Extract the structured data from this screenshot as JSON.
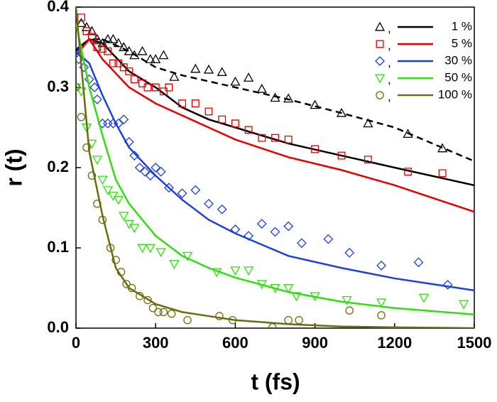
{
  "chart_data": {
    "type": "scatter",
    "x_label": "t (fs)",
    "y_label": "r (t)",
    "xlim": [
      0,
      1500
    ],
    "ylim": [
      0,
      0.4
    ],
    "xticks": [
      0,
      300,
      600,
      900,
      1200,
      1500
    ],
    "yticks": [
      {
        "value": 0,
        "label": "0.0"
      },
      0.1,
      0.2,
      0.3,
      0.4
    ],
    "legend": "upper right",
    "legend_separator": ",",
    "series": [
      {
        "name": "1 %",
        "color": "#000000",
        "marker": "triangle",
        "x": [
          20,
          40,
          60,
          80,
          100,
          120,
          140,
          160,
          180,
          200,
          220,
          250,
          280,
          300,
          330,
          370,
          450,
          500,
          550,
          600,
          650,
          700,
          750,
          800,
          900,
          1000,
          1100,
          1250,
          1380
        ],
        "values": [
          0.38,
          0.375,
          0.37,
          0.36,
          0.355,
          0.36,
          0.36,
          0.355,
          0.35,
          0.345,
          0.34,
          0.345,
          0.335,
          0.335,
          0.34,
          0.313,
          0.323,
          0.322,
          0.319,
          0.307,
          0.312,
          0.298,
          0.287,
          0.286,
          0.278,
          0.268,
          0.255,
          0.242,
          0.224
        ],
        "line_x": [
          0,
          50,
          100,
          200,
          300,
          400,
          500,
          600,
          800,
          1000,
          1200,
          1500
        ],
        "line_values": [
          0.347,
          0.36,
          0.355,
          0.32,
          0.3,
          0.275,
          0.26,
          0.25,
          0.23,
          0.215,
          0.2,
          0.178
        ]
      },
      {
        "name": "5 %",
        "color": "#e00000",
        "marker": "square",
        "x": [
          20,
          40,
          60,
          80,
          100,
          120,
          140,
          160,
          180,
          200,
          220,
          250,
          270,
          300,
          330,
          350,
          400,
          450,
          500,
          550,
          600,
          650,
          700,
          750,
          800,
          900,
          1000,
          1100,
          1250,
          1380
        ],
        "values": [
          0.387,
          0.37,
          0.363,
          0.35,
          0.348,
          0.345,
          0.33,
          0.33,
          0.325,
          0.32,
          0.31,
          0.305,
          0.3,
          0.3,
          0.295,
          0.3,
          0.28,
          0.28,
          0.27,
          0.26,
          0.255,
          0.247,
          0.237,
          0.237,
          0.235,
          0.223,
          0.215,
          0.21,
          0.195,
          0.193
        ],
        "line_x": [
          0,
          50,
          100,
          200,
          300,
          400,
          500,
          600,
          800,
          1000,
          1200,
          1500
        ],
        "line_values": [
          0.34,
          0.36,
          0.335,
          0.3,
          0.28,
          0.265,
          0.25,
          0.235,
          0.213,
          0.197,
          0.178,
          0.145
        ]
      },
      {
        "name": "30 %",
        "color": "#1f3fdd",
        "marker": "diamond",
        "x": [
          0,
          10,
          30,
          50,
          70,
          80,
          100,
          120,
          140,
          160,
          180,
          200,
          220,
          240,
          260,
          280,
          300,
          320,
          350,
          400,
          450,
          500,
          550,
          600,
          650,
          700,
          750,
          800,
          850,
          950,
          1030,
          1150,
          1290,
          1400
        ],
        "values": [
          0.345,
          0.335,
          0.325,
          0.31,
          0.3,
          0.285,
          0.255,
          0.255,
          0.255,
          0.255,
          0.26,
          0.232,
          0.215,
          0.2,
          0.195,
          0.19,
          0.2,
          0.195,
          0.175,
          0.168,
          0.172,
          0.155,
          0.148,
          0.123,
          0.115,
          0.13,
          0.12,
          0.127,
          0.106,
          0.111,
          0.094,
          0.078,
          0.082,
          0.054
        ],
        "line_x": [
          0,
          50,
          100,
          150,
          200,
          300,
          400,
          500,
          600,
          800,
          1000,
          1200,
          1500
        ],
        "line_values": [
          0.345,
          0.33,
          0.29,
          0.255,
          0.225,
          0.19,
          0.16,
          0.135,
          0.118,
          0.09,
          0.075,
          0.062,
          0.047
        ]
      },
      {
        "name": "50 %",
        "color": "#33dd11",
        "marker": "triangle-down",
        "x": [
          0,
          20,
          40,
          60,
          80,
          100,
          120,
          140,
          160,
          180,
          200,
          220,
          250,
          280,
          320,
          370,
          420,
          530,
          600,
          650,
          700,
          750,
          800,
          830,
          900,
          1020,
          1150,
          1310,
          1460
        ],
        "values": [
          0.3,
          0.295,
          0.25,
          0.23,
          0.21,
          0.185,
          0.172,
          0.165,
          0.16,
          0.14,
          0.13,
          0.125,
          0.1,
          0.1,
          0.095,
          0.08,
          0.09,
          0.07,
          0.072,
          0.072,
          0.055,
          0.05,
          0.05,
          0.04,
          0.04,
          0.035,
          0.032,
          0.038,
          0.03
        ],
        "line_x": [
          0,
          50,
          100,
          150,
          200,
          300,
          400,
          500,
          600,
          800,
          1000,
          1200,
          1500
        ],
        "line_values": [
          0.38,
          0.3,
          0.24,
          0.185,
          0.155,
          0.115,
          0.09,
          0.075,
          0.063,
          0.045,
          0.033,
          0.025,
          0.017
        ]
      },
      {
        "name": "100 %",
        "color": "#6b6b10",
        "marker": "circle",
        "x": [
          0,
          20,
          40,
          60,
          80,
          100,
          130,
          150,
          170,
          190,
          210,
          240,
          270,
          290,
          310,
          330,
          360,
          420,
          540,
          590,
          740,
          800,
          840,
          1030,
          1150
        ],
        "values": [
          0.3,
          0.263,
          0.225,
          0.19,
          0.155,
          0.135,
          0.1,
          0.085,
          0.07,
          0.055,
          0.05,
          0.04,
          0.035,
          0.025,
          0.02,
          0.02,
          0.018,
          0.01,
          0.015,
          0.01,
          0.001,
          0.01,
          0.01,
          0.022,
          0.016
        ],
        "line_x": [
          0,
          50,
          100,
          150,
          200,
          300,
          400,
          500,
          600,
          800,
          1000,
          1200,
          1500
        ],
        "line_values": [
          0.4,
          0.22,
          0.14,
          0.075,
          0.05,
          0.03,
          0.02,
          0.015,
          0.01,
          0.005,
          0.002,
          0.001,
          0
        ]
      }
    ],
    "reference_line": {
      "color": "#000000",
      "dashed": true,
      "x": [
        0,
        50,
        100,
        200,
        300,
        400,
        600,
        800,
        1000,
        1200,
        1500
      ],
      "values": [
        0.345,
        0.36,
        0.36,
        0.345,
        0.325,
        0.315,
        0.3,
        0.285,
        0.268,
        0.25,
        0.208
      ]
    }
  }
}
